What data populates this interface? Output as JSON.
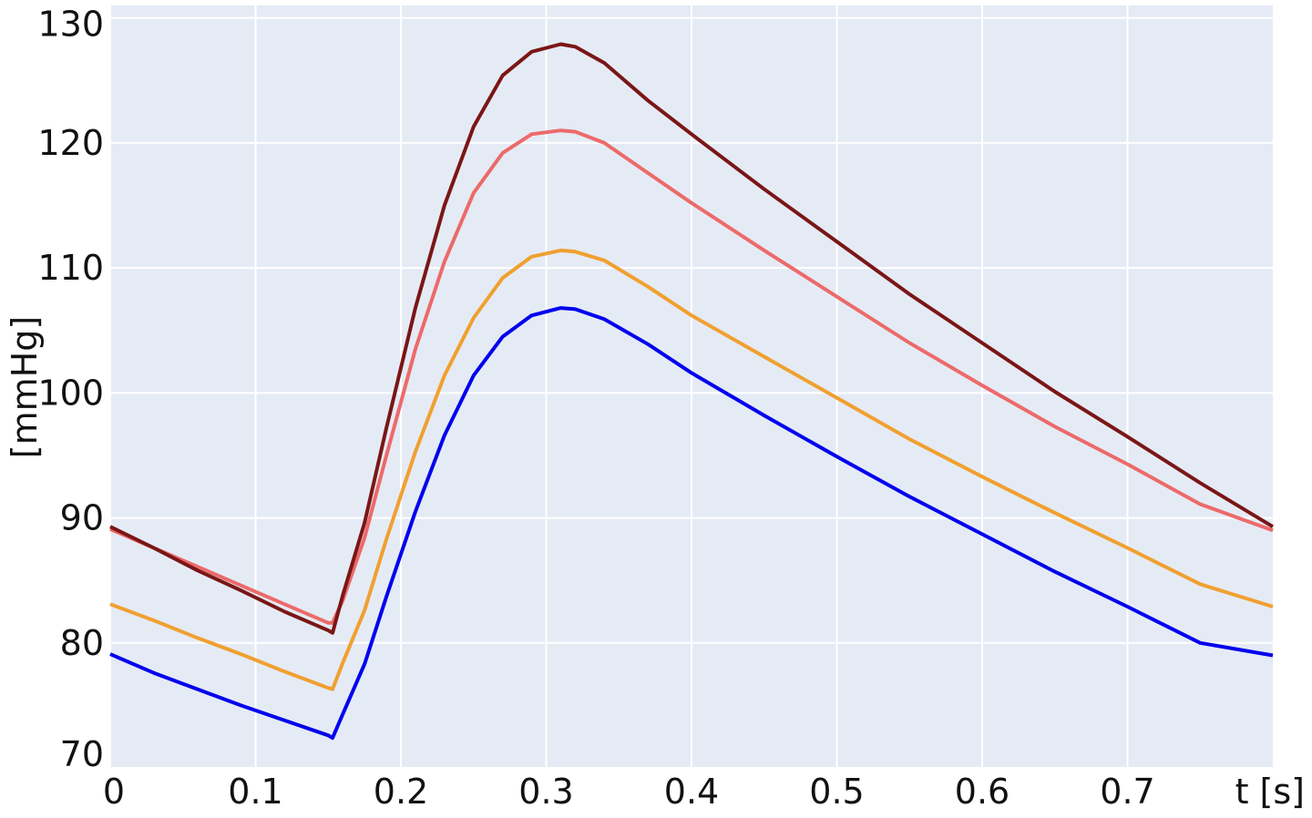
{
  "chart_data": {
    "type": "line",
    "title": "",
    "xlabel": "t [s]",
    "ylabel": "[mmHg]",
    "xlim": [
      0,
      0.8
    ],
    "ylim": [
      70,
      131
    ],
    "xticks": [
      0,
      0.1,
      0.2,
      0.3,
      0.4,
      0.5,
      0.6,
      0.7
    ],
    "xtick_labels": [
      "0",
      "0.1",
      "0.2",
      "0.3",
      "0.4",
      "0.5",
      "0.6",
      "0.7"
    ],
    "yticks": [
      70,
      80,
      90,
      100,
      110,
      120,
      130
    ],
    "ytick_labels": [
      "70",
      "80",
      "90",
      "100",
      "110",
      "120",
      "130"
    ],
    "grid": true,
    "background": "#e5ebf5",
    "grid_color": "#ffffff",
    "series": [
      {
        "color": "#0000ee",
        "x": [
          0,
          0.03,
          0.06,
          0.09,
          0.12,
          0.15,
          0.153,
          0.16,
          0.175,
          0.19,
          0.21,
          0.23,
          0.25,
          0.27,
          0.29,
          0.31,
          0.32,
          0.34,
          0.37,
          0.4,
          0.45,
          0.5,
          0.55,
          0.6,
          0.65,
          0.7,
          0.75,
          0.8
        ],
        "y": [
          79.1,
          77.6,
          76.3,
          75.0,
          73.8,
          72.6,
          72.4,
          74.3,
          78.3,
          83.7,
          90.5,
          96.6,
          101.4,
          104.5,
          106.2,
          106.8,
          106.7,
          105.9,
          103.9,
          101.6,
          98.2,
          94.9,
          91.7,
          88.7,
          85.7,
          82.9,
          80.0,
          79.0
        ]
      },
      {
        "color": "#f0a030",
        "x": [
          0,
          0.03,
          0.06,
          0.09,
          0.12,
          0.15,
          0.153,
          0.16,
          0.175,
          0.19,
          0.21,
          0.23,
          0.25,
          0.27,
          0.29,
          0.31,
          0.32,
          0.34,
          0.37,
          0.4,
          0.45,
          0.5,
          0.55,
          0.6,
          0.65,
          0.7,
          0.75,
          0.8
        ],
        "y": [
          83.1,
          81.8,
          80.4,
          79.1,
          77.7,
          76.4,
          76.3,
          78.4,
          82.6,
          88.3,
          95.3,
          101.4,
          106.0,
          109.2,
          110.9,
          111.4,
          111.3,
          110.6,
          108.5,
          106.2,
          102.9,
          99.6,
          96.3,
          93.3,
          90.4,
          87.6,
          84.7,
          82.9
        ]
      },
      {
        "color": "#ec6a6a",
        "x": [
          0,
          0.03,
          0.06,
          0.09,
          0.12,
          0.15,
          0.153,
          0.16,
          0.175,
          0.19,
          0.21,
          0.23,
          0.25,
          0.27,
          0.29,
          0.31,
          0.32,
          0.34,
          0.37,
          0.4,
          0.45,
          0.5,
          0.55,
          0.6,
          0.65,
          0.7,
          0.75,
          0.8
        ],
        "y": [
          89.1,
          87.6,
          86.1,
          84.6,
          83.1,
          81.6,
          81.6,
          83.4,
          88.4,
          95.0,
          103.5,
          110.5,
          116.0,
          119.2,
          120.7,
          121.0,
          120.9,
          120.0,
          117.6,
          115.2,
          111.4,
          107.7,
          104.0,
          100.6,
          97.3,
          94.3,
          91.1,
          89.0
        ]
      },
      {
        "color": "#7a1616",
        "x": [
          0,
          0.03,
          0.06,
          0.09,
          0.12,
          0.15,
          0.153,
          0.16,
          0.175,
          0.19,
          0.21,
          0.23,
          0.25,
          0.27,
          0.29,
          0.31,
          0.32,
          0.34,
          0.37,
          0.4,
          0.45,
          0.5,
          0.55,
          0.6,
          0.65,
          0.7,
          0.75,
          0.8
        ],
        "y": [
          89.3,
          87.6,
          85.8,
          84.2,
          82.5,
          81.0,
          80.8,
          83.8,
          89.6,
          97.2,
          106.8,
          115.0,
          121.3,
          125.4,
          127.3,
          127.9,
          127.7,
          126.4,
          123.4,
          120.7,
          116.3,
          112.1,
          107.9,
          104.0,
          100.1,
          96.5,
          92.8,
          89.3
        ]
      }
    ]
  }
}
